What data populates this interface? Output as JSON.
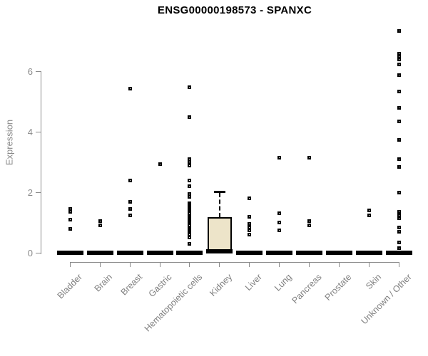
{
  "title": "ENSG00000198573 - SPANXC",
  "colors": {
    "axis": "#8a8a8a",
    "label_gray": "#7f7f7f",
    "marker_border": "#000000",
    "marker_fill": "#ffffff",
    "box_fill": "#ede4c9",
    "title_text": "#000000"
  },
  "chart_data": {
    "type": "boxplot",
    "title": "ENSG00000198573 - SPANXC",
    "xlabel": "",
    "ylabel": "Expression",
    "yticks": [
      0,
      2,
      4,
      6
    ],
    "ylim": [
      0,
      7.5
    ],
    "grid": false,
    "legend": "none",
    "categories": [
      "Bladder",
      "Brain",
      "Breast",
      "Gastric",
      "Hematopoietic cells",
      "Kidney",
      "Liver",
      "Lung",
      "Pancreas",
      "Prostate",
      "Skin",
      "Unknown / Other"
    ],
    "series": [
      {
        "name": "Bladder",
        "box": {
          "q1": 0,
          "median": 0,
          "q3": 0,
          "whisker_low": 0,
          "whisker_high": 0
        },
        "outliers": [
          1.45,
          1.35,
          1.1,
          0.8
        ]
      },
      {
        "name": "Brain",
        "box": {
          "q1": 0,
          "median": 0,
          "q3": 0,
          "whisker_low": 0,
          "whisker_high": 0
        },
        "outliers": [
          1.05,
          0.9
        ]
      },
      {
        "name": "Breast",
        "box": {
          "q1": 0,
          "median": 0,
          "q3": 0,
          "whisker_low": 0,
          "whisker_high": 0
        },
        "outliers": [
          5.45,
          2.4,
          1.7,
          1.45,
          1.25
        ]
      },
      {
        "name": "Gastric",
        "box": {
          "q1": 0,
          "median": 0,
          "q3": 0,
          "whisker_low": 0,
          "whisker_high": 0
        },
        "outliers": [
          2.95
        ]
      },
      {
        "name": "Hematopoietic cells",
        "box": {
          "q1": 0,
          "median": 0,
          "q3": 0,
          "whisker_low": 0,
          "whisker_high": 0
        },
        "outliers": [
          5.5,
          4.5,
          3.1,
          3.0,
          2.9,
          2.4,
          2.2,
          1.95,
          1.85,
          1.65,
          1.6,
          1.55,
          1.5,
          1.45,
          1.4,
          1.35,
          1.3,
          1.25,
          1.2,
          1.15,
          1.1,
          1.05,
          1.0,
          0.95,
          0.9,
          0.85,
          0.8,
          0.75,
          0.7,
          0.65,
          0.6,
          0.5,
          0.3
        ]
      },
      {
        "name": "Kidney",
        "box": {
          "q1": 0,
          "median": 0.05,
          "q3": 1.18,
          "whisker_low": 0,
          "whisker_high": 2.0
        },
        "outliers": []
      },
      {
        "name": "Liver",
        "box": {
          "q1": 0,
          "median": 0,
          "q3": 0,
          "whisker_low": 0,
          "whisker_high": 0
        },
        "outliers": [
          1.8,
          1.2,
          0.95,
          0.85,
          0.75,
          0.6
        ]
      },
      {
        "name": "Lung",
        "box": {
          "q1": 0,
          "median": 0,
          "q3": 0,
          "whisker_low": 0,
          "whisker_high": 0
        },
        "outliers": [
          3.15,
          1.3,
          1.0,
          0.75
        ]
      },
      {
        "name": "Pancreas",
        "box": {
          "q1": 0,
          "median": 0,
          "q3": 0,
          "whisker_low": 0,
          "whisker_high": 0
        },
        "outliers": [
          3.15,
          1.05,
          0.9
        ]
      },
      {
        "name": "Prostate",
        "box": {
          "q1": 0,
          "median": 0,
          "q3": 0,
          "whisker_low": 0,
          "whisker_high": 0
        },
        "outliers": []
      },
      {
        "name": "Skin",
        "box": {
          "q1": 0,
          "median": 0,
          "q3": 0,
          "whisker_low": 0,
          "whisker_high": 0
        },
        "outliers": [
          1.4,
          1.25
        ]
      },
      {
        "name": "Unknown / Other",
        "box": {
          "q1": 0,
          "median": 0,
          "q3": 0,
          "whisker_low": 0,
          "whisker_high": 0
        },
        "outliers": [
          7.35,
          6.6,
          6.5,
          6.4,
          6.25,
          5.9,
          5.35,
          4.8,
          4.35,
          3.75,
          3.1,
          2.85,
          2.0,
          1.35,
          1.25,
          1.15,
          0.85,
          0.7,
          0.35,
          0.15
        ]
      }
    ]
  }
}
